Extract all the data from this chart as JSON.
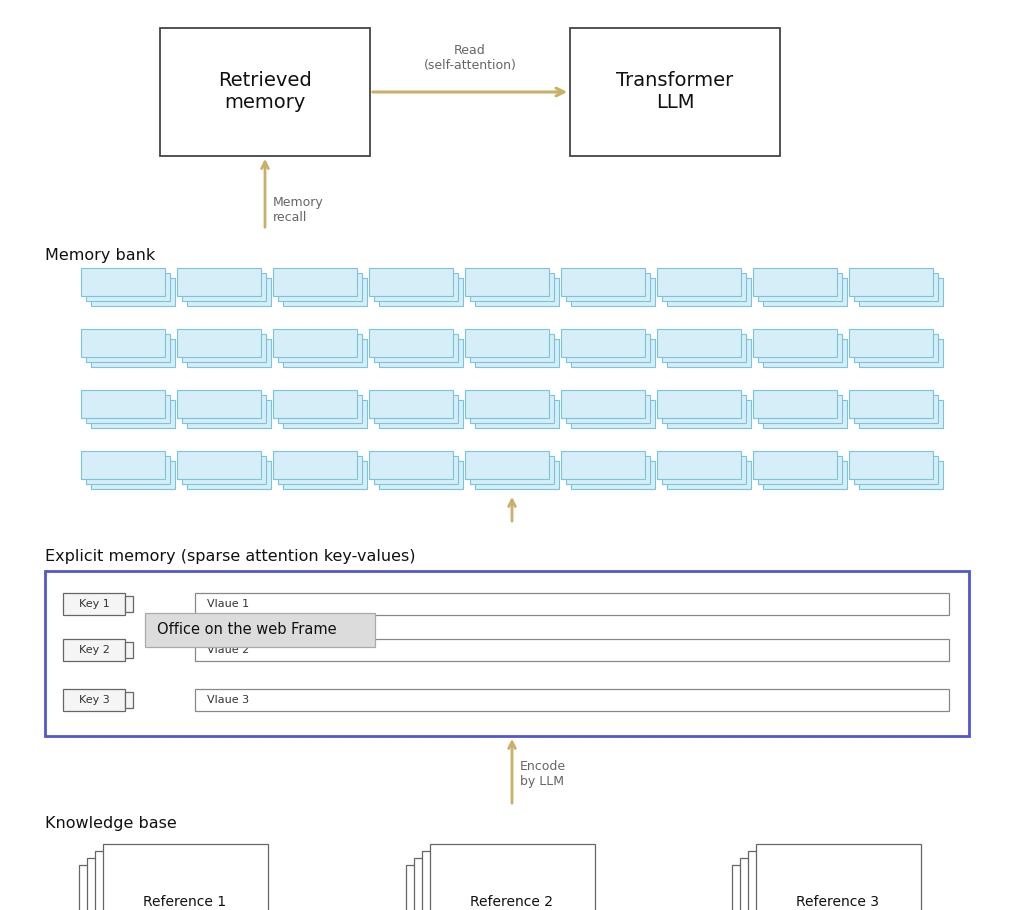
{
  "bg_color": "#ffffff",
  "arrow_color": "#c8b068",
  "box_border_color": "#444444",
  "blue_rect_fill": "#d6eef8",
  "blue_rect_edge": "#7ac4dc",
  "explicit_border_color": "#5555cc",
  "ref_box_edge": "#666666",
  "key_box_color": "#f5f5f5",
  "key_box_edge": "#666666",
  "val_box_edge": "#888888",
  "tooltip_color": "#dcdcdc",
  "tooltip_edge": "#aaaaaa",
  "retrieved_memory_label": "Retrieved\nmemory",
  "transformer_llm_label": "Transformer\nLLM",
  "read_label": "Read\n(self-attention)",
  "memory_recall_label": "Memory\nrecall",
  "memory_bank_label": "Memory bank",
  "explicit_memory_label": "Explicit memory (sparse attention key-values)",
  "encode_label": "Encode\nby LLM",
  "knowledge_base_label": "Knowledge base",
  "key_labels": [
    "Key 1",
    "Key 2",
    "Key 3"
  ],
  "val_labels": [
    "Vlaue 1",
    "Vlaue 2",
    "Vlaue 3"
  ],
  "ref_labels": [
    "Reference 1",
    "Reference 2",
    "Reference 3"
  ],
  "tooltip_text": "Office on the web Frame",
  "fig_w": 10.24,
  "fig_h": 9.1
}
